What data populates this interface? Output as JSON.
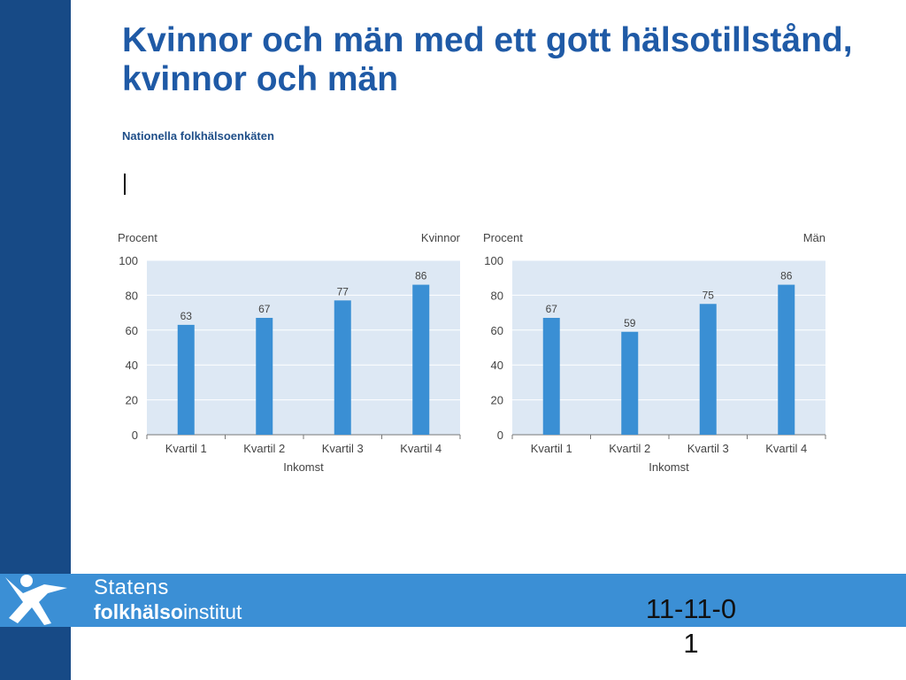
{
  "slide": {
    "title": "Kvinnor och män med ett gott hälsotillstånd, kvinnor och män",
    "subtitle": "Nationella folkhälsoenkäten",
    "date": "11-11-01"
  },
  "logo": {
    "line1": "Statens",
    "line2_bold": "folkhälso",
    "line2_regular": "institut"
  },
  "colors": {
    "sidebar": "#174a86",
    "footer": "#3b8fd5",
    "title": "#1f5aa6",
    "bar": "#3a8fd4",
    "plot_bg": "#dde8f4"
  },
  "chart_data": [
    {
      "type": "bar",
      "title": "Kvinnor",
      "ylabel": "Procent",
      "xlabel": "Inkomst",
      "categories": [
        "Kvartil 1",
        "Kvartil 2",
        "Kvartil 3",
        "Kvartil 4"
      ],
      "values": [
        63,
        67,
        77,
        86
      ],
      "ylim": [
        0,
        100
      ],
      "yticks": [
        0,
        20,
        40,
        60,
        80,
        100
      ],
      "grid": true
    },
    {
      "type": "bar",
      "title": "Män",
      "ylabel": "Procent",
      "xlabel": "Inkomst",
      "categories": [
        "Kvartil 1",
        "Kvartil 2",
        "Kvartil 3",
        "Kvartil 4"
      ],
      "values": [
        67,
        59,
        75,
        86
      ],
      "ylim": [
        0,
        100
      ],
      "yticks": [
        0,
        20,
        40,
        60,
        80,
        100
      ],
      "grid": true
    }
  ]
}
